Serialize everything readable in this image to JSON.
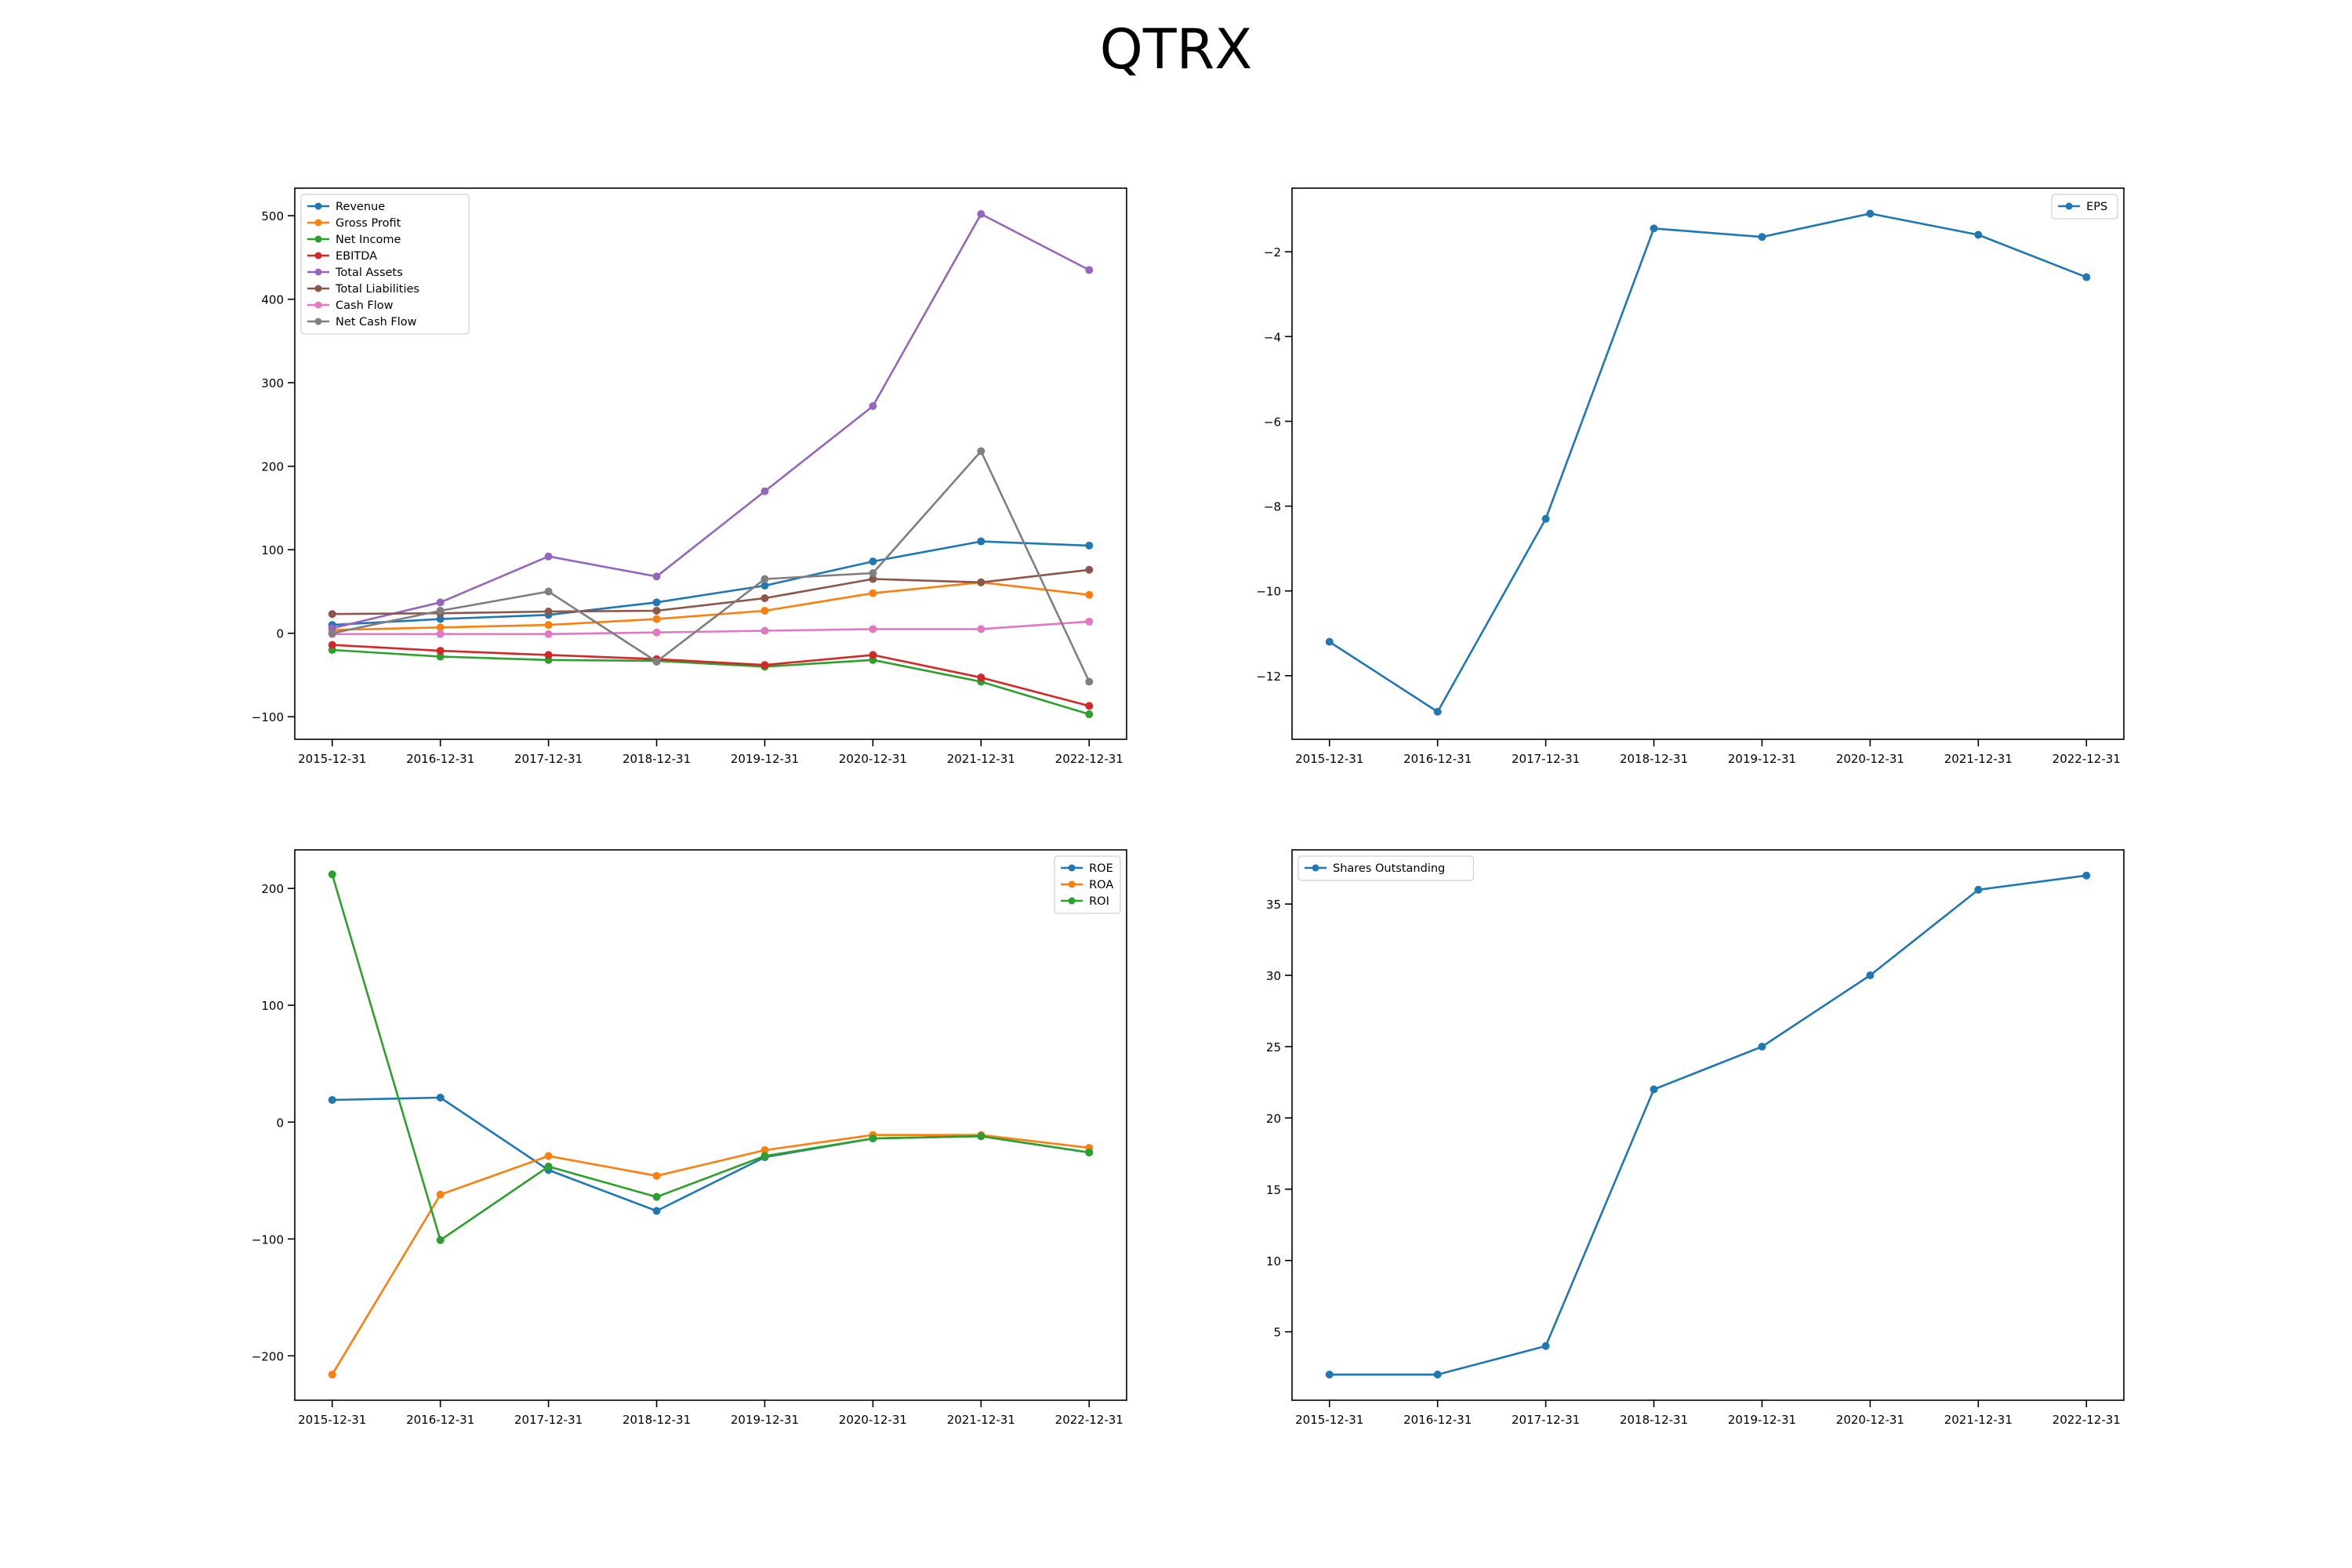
{
  "title": "QTRX",
  "chart_data": [
    {
      "type": "line",
      "x": [
        "2015-12-31",
        "2016-12-31",
        "2017-12-31",
        "2018-12-31",
        "2019-12-31",
        "2020-12-31",
        "2021-12-31",
        "2022-12-31"
      ],
      "ylim": [
        -127,
        533
      ],
      "yticks": [
        -100,
        0,
        100,
        200,
        300,
        400,
        500
      ],
      "legend": "upper left",
      "series": [
        {
          "name": "Revenue",
          "color": "#1f77b4",
          "values": [
            10,
            17,
            22,
            37,
            57,
            86,
            110,
            105
          ]
        },
        {
          "name": "Gross Profit",
          "color": "#ff7f0e",
          "values": [
            4,
            7,
            10,
            17,
            27,
            48,
            61,
            46
          ]
        },
        {
          "name": "Net Income",
          "color": "#2ca02c",
          "values": [
            -20,
            -28,
            -32,
            -33,
            -40,
            -32,
            -58,
            -97
          ]
        },
        {
          "name": "EBITDA",
          "color": "#d62728",
          "values": [
            -14,
            -21,
            -26,
            -31,
            -38,
            -26,
            -53,
            -87
          ]
        },
        {
          "name": "Total Assets",
          "color": "#9467bd",
          "values": [
            6,
            37,
            92,
            68,
            170,
            272,
            502,
            435
          ]
        },
        {
          "name": "Total Liabilities",
          "color": "#8c564b",
          "values": [
            23,
            24,
            26,
            27,
            42,
            65,
            61,
            76
          ]
        },
        {
          "name": "Cash Flow",
          "color": "#e377c2",
          "values": [
            -1,
            -1,
            -1,
            1,
            3,
            5,
            5,
            14
          ]
        },
        {
          "name": "Net Cash Flow",
          "color": "#7f7f7f",
          "values": [
            0,
            27,
            50,
            -34,
            65,
            72,
            218,
            -58
          ]
        }
      ]
    },
    {
      "type": "line",
      "x": [
        "2015-12-31",
        "2016-12-31",
        "2017-12-31",
        "2018-12-31",
        "2019-12-31",
        "2020-12-31",
        "2021-12-31",
        "2022-12-31"
      ],
      "ylim": [
        -13.5,
        -0.5
      ],
      "yticks": [
        -12,
        -10,
        -8,
        -6,
        -4,
        -2
      ],
      "legend": "upper right",
      "series": [
        {
          "name": "EPS",
          "color": "#1f77b4",
          "values": [
            -11.2,
            -12.85,
            -8.3,
            -1.45,
            -1.65,
            -1.1,
            -1.6,
            -2.6
          ]
        }
      ]
    },
    {
      "type": "line",
      "x": [
        "2015-12-31",
        "2016-12-31",
        "2017-12-31",
        "2018-12-31",
        "2019-12-31",
        "2020-12-31",
        "2021-12-31",
        "2022-12-31"
      ],
      "ylim": [
        -238,
        233
      ],
      "yticks": [
        -200,
        -100,
        0,
        100,
        200
      ],
      "legend": "upper right",
      "series": [
        {
          "name": "ROE",
          "color": "#1f77b4",
          "values": [
            19,
            21,
            -41,
            -76,
            -30,
            -14,
            -12,
            -26
          ]
        },
        {
          "name": "ROA",
          "color": "#ff7f0e",
          "values": [
            -216,
            -62,
            -29,
            -46,
            -24,
            -11,
            -11,
            -22
          ]
        },
        {
          "name": "ROI",
          "color": "#2ca02c",
          "values": [
            212,
            -101,
            -38,
            -64,
            -29,
            -14,
            -12,
            -26
          ]
        }
      ]
    },
    {
      "type": "line",
      "x": [
        "2015-12-31",
        "2016-12-31",
        "2017-12-31",
        "2018-12-31",
        "2019-12-31",
        "2020-12-31",
        "2021-12-31",
        "2022-12-31"
      ],
      "ylim": [
        0.2,
        38.8
      ],
      "yticks": [
        5,
        10,
        15,
        20,
        25,
        30,
        35
      ],
      "legend": "upper left",
      "series": [
        {
          "name": "Shares Outstanding",
          "color": "#1f77b4",
          "values": [
            2,
            2,
            4,
            22,
            25,
            30,
            36,
            37
          ]
        }
      ]
    }
  ]
}
